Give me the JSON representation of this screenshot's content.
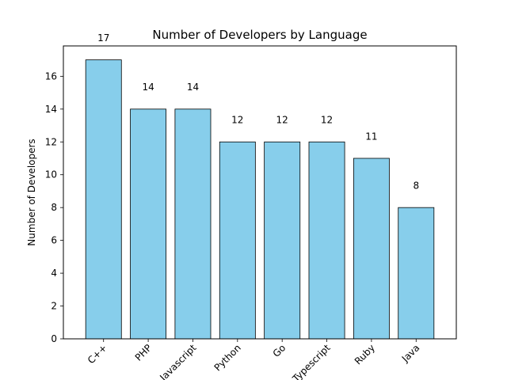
{
  "chart_data": {
    "type": "bar",
    "title": "Number of Developers by Language",
    "xlabel": "",
    "ylabel": "Number of Developers",
    "categories": [
      "C++",
      "PHP",
      "Javascript",
      "Python",
      "Go",
      "Typescript",
      "Ruby",
      "Java"
    ],
    "values": [
      17,
      14,
      14,
      12,
      12,
      12,
      11,
      8
    ],
    "ylim": [
      0,
      17.85
    ],
    "yticks": [
      0,
      2,
      4,
      6,
      8,
      10,
      12,
      14,
      16
    ],
    "grid": false,
    "bar_color": "#87ceeb",
    "edge_color": "#000000",
    "data_labels": true,
    "x_tick_rotation": 45
  }
}
